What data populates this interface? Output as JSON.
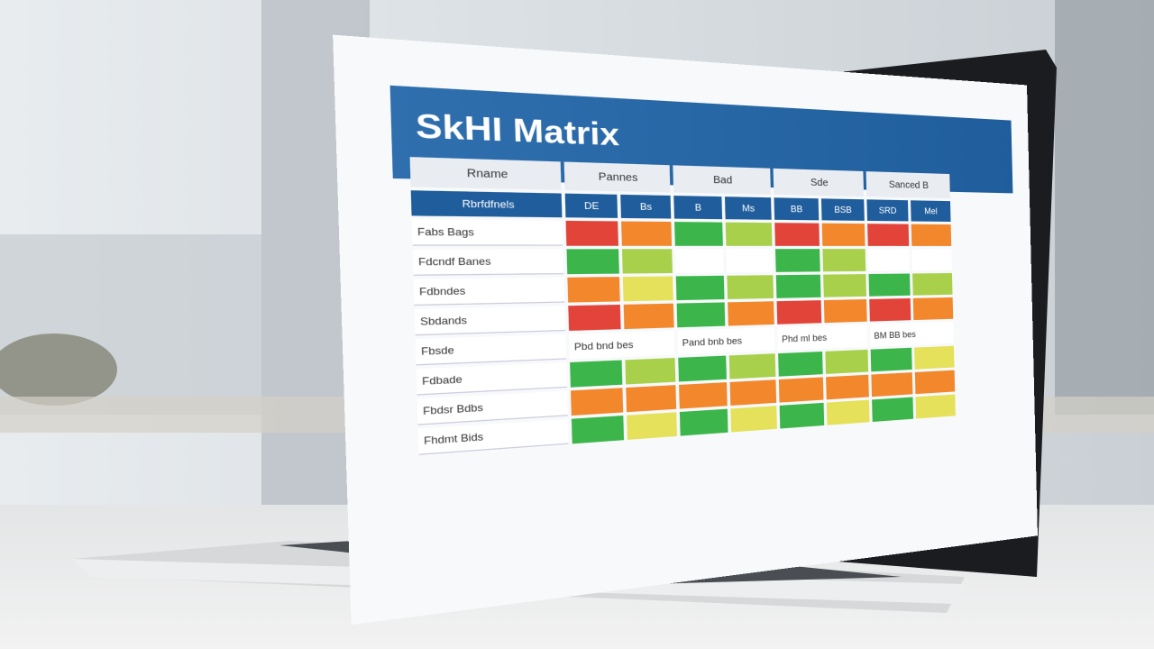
{
  "screen": {
    "title": "SkHI Matrix",
    "name_header": "Rname",
    "name_subheader": "Rbrfdfnels",
    "columns": [
      {
        "label": "Pannes",
        "sub": [
          "DE",
          "Bs"
        ]
      },
      {
        "label": "Bad",
        "sub": [
          "B",
          "Ms"
        ]
      },
      {
        "label": "Sde",
        "sub": [
          "BB",
          "BSB"
        ]
      },
      {
        "label": "Sanced B",
        "sub": [
          "SRD",
          "Mel"
        ]
      }
    ],
    "rows": [
      "Fabs Bags",
      "Fdcndf Banes",
      "Fdbndes",
      "Sbdands",
      "Fbsde",
      "Fdbade",
      "Fbdsr Bdbs",
      "Fhdmt Bids"
    ],
    "section_row": [
      "Pbd bnd bes",
      "Pand bnb bes",
      "Phd ml bes",
      "BM BB bes"
    ]
  }
}
